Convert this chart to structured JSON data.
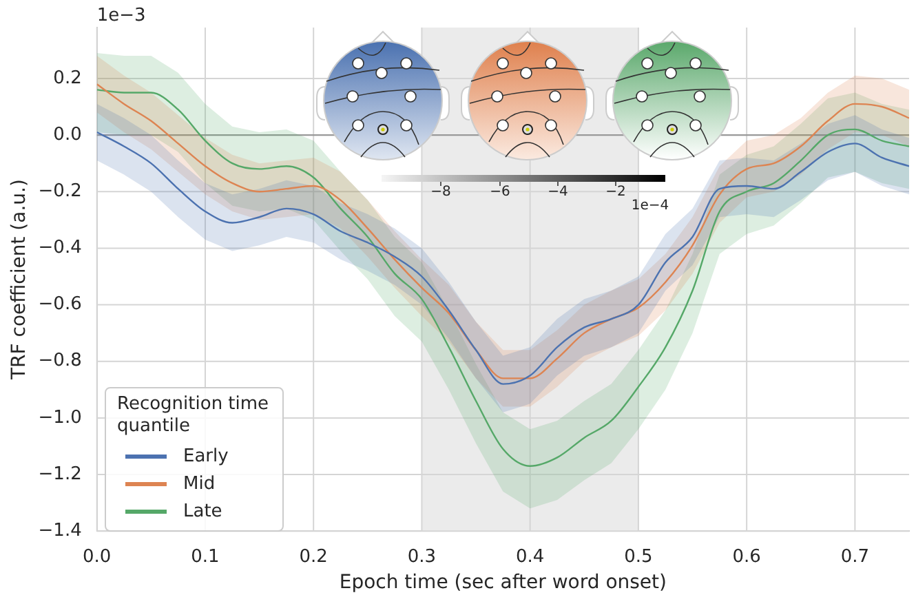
{
  "chart_data": {
    "type": "line",
    "xlabel": "Epoch time (sec after word onset)",
    "ylabel": "TRF coefficient (a.u.)",
    "legend_title": "Recognition time quantile",
    "legend": "bottom left",
    "grid": true,
    "marker": "none",
    "line_style": "solid",
    "xlim": [
      0,
      0.75
    ],
    "ylim": [
      -1.4,
      0.38
    ],
    "xticks": [
      {
        "value": 0,
        "label": "0.0"
      },
      0.1,
      0.2,
      0.3,
      0.4,
      0.5,
      0.6,
      0.7
    ],
    "yticks": [
      {
        "value": -1.4,
        "label": "−1.4"
      },
      {
        "value": -1.2,
        "label": "−1.2"
      },
      {
        "value": -1.0,
        "label": "−1.0"
      },
      {
        "value": -0.8,
        "label": "−0.8"
      },
      {
        "value": -0.6,
        "label": "−0.6"
      },
      {
        "value": -0.4,
        "label": "−0.4"
      },
      {
        "value": -0.2,
        "label": "−0.2"
      },
      {
        "value": 0,
        "label": "0.0"
      },
      0.2
    ],
    "x": [
      0,
      0.025,
      0.05,
      0.075,
      0.1,
      0.125,
      0.15,
      0.175,
      0.2,
      0.225,
      0.25,
      0.275,
      0.3,
      0.325,
      0.35,
      0.375,
      0.4,
      0.425,
      0.45,
      0.475,
      0.5,
      0.525,
      0.55,
      0.575,
      0.6,
      0.625,
      0.65,
      0.675,
      0.7,
      0.725,
      0.75
    ],
    "series": [
      {
        "name": "Early",
        "color": "#4c72b0",
        "values": [
          0.01,
          -0.04,
          -0.1,
          -0.19,
          -0.27,
          -0.31,
          -0.29,
          -0.26,
          -0.28,
          -0.34,
          -0.38,
          -0.43,
          -0.5,
          -0.62,
          -0.76,
          -0.88,
          -0.85,
          -0.75,
          -0.68,
          -0.65,
          -0.6,
          -0.45,
          -0.36,
          -0.19,
          -0.18,
          -0.19,
          -0.13,
          -0.06,
          -0.03,
          -0.08,
          -0.11
        ],
        "upper": [
          0.11,
          0.06,
          0,
          -0.09,
          -0.17,
          -0.21,
          -0.19,
          -0.16,
          -0.18,
          -0.24,
          -0.28,
          -0.33,
          -0.4,
          -0.52,
          -0.66,
          -0.78,
          -0.75,
          -0.65,
          -0.58,
          -0.55,
          -0.5,
          -0.35,
          -0.26,
          -0.09,
          -0.08,
          -0.09,
          -0.03,
          0.04,
          0.07,
          0.02,
          -0.01
        ],
        "lower": [
          -0.09,
          -0.14,
          -0.2,
          -0.29,
          -0.37,
          -0.41,
          -0.39,
          -0.36,
          -0.38,
          -0.44,
          -0.48,
          -0.53,
          -0.6,
          -0.72,
          -0.86,
          -0.98,
          -0.95,
          -0.85,
          -0.78,
          -0.75,
          -0.7,
          -0.55,
          -0.46,
          -0.29,
          -0.28,
          -0.29,
          -0.23,
          -0.16,
          -0.13,
          -0.18,
          -0.21
        ]
      },
      {
        "name": "Mid",
        "color": "#dd8452",
        "values": [
          0.18,
          0.11,
          0.05,
          -0.03,
          -0.11,
          -0.17,
          -0.2,
          -0.19,
          -0.18,
          -0.23,
          -0.33,
          -0.44,
          -0.54,
          -0.63,
          -0.76,
          -0.86,
          -0.86,
          -0.79,
          -0.7,
          -0.65,
          -0.61,
          -0.52,
          -0.39,
          -0.21,
          -0.12,
          -0.1,
          -0.04,
          0.05,
          0.11,
          0.1,
          0.06
        ],
        "upper": [
          0.28,
          0.21,
          0.15,
          0.07,
          -0.01,
          -0.07,
          -0.1,
          -0.09,
          -0.08,
          -0.13,
          -0.23,
          -0.34,
          -0.44,
          -0.53,
          -0.66,
          -0.76,
          -0.76,
          -0.69,
          -0.6,
          -0.55,
          -0.51,
          -0.42,
          -0.29,
          -0.11,
          -0.02,
          0,
          0.06,
          0.15,
          0.21,
          0.2,
          0.16
        ],
        "lower": [
          0.08,
          0.01,
          -0.05,
          -0.13,
          -0.21,
          -0.27,
          -0.3,
          -0.29,
          -0.28,
          -0.33,
          -0.43,
          -0.54,
          -0.64,
          -0.73,
          -0.86,
          -0.96,
          -0.96,
          -0.89,
          -0.8,
          -0.75,
          -0.71,
          -0.62,
          -0.49,
          -0.31,
          -0.22,
          -0.2,
          -0.14,
          -0.05,
          0.01,
          0,
          -0.04
        ]
      },
      {
        "name": "Late",
        "color": "#55a868",
        "values": [
          0.16,
          0.15,
          0.15,
          0.09,
          -0.02,
          -0.1,
          -0.12,
          -0.11,
          -0.15,
          -0.26,
          -0.36,
          -0.49,
          -0.58,
          -0.75,
          -0.94,
          -1.11,
          -1.17,
          -1.14,
          -1.07,
          -1.01,
          -0.89,
          -0.75,
          -0.55,
          -0.27,
          -0.2,
          -0.17,
          -0.09,
          0.0,
          0.02,
          -0.02,
          -0.04
        ],
        "upper": [
          0.29,
          0.28,
          0.28,
          0.22,
          0.11,
          0.03,
          0.01,
          0.02,
          -0.02,
          -0.13,
          -0.23,
          -0.36,
          -0.45,
          -0.62,
          -0.81,
          -0.98,
          -1.04,
          -1.01,
          -0.94,
          -0.88,
          -0.76,
          -0.62,
          -0.42,
          -0.14,
          -0.07,
          -0.04,
          0.04,
          0.13,
          0.15,
          0.11,
          0.09
        ],
        "lower": [
          0.01,
          0,
          0,
          -0.06,
          -0.17,
          -0.25,
          -0.27,
          -0.26,
          -0.3,
          -0.41,
          -0.51,
          -0.64,
          -0.73,
          -0.9,
          -1.09,
          -1.26,
          -1.32,
          -1.29,
          -1.22,
          -1.16,
          -1.04,
          -0.9,
          -0.7,
          -0.42,
          -0.35,
          -0.32,
          -0.24,
          -0.15,
          -0.13,
          -0.17,
          -0.19
        ]
      }
    ],
    "ref_lines": [
      {
        "axis": "y",
        "value": 0,
        "color": "#999999"
      }
    ],
    "bands": [
      {
        "axis": "x",
        "from": 0.3,
        "to": 0.5,
        "color": "#ebebeb"
      }
    ],
    "annotations": [
      "1e−3",
      "−8",
      "−6",
      "−4",
      "−2",
      "1e−4"
    ]
  }
}
